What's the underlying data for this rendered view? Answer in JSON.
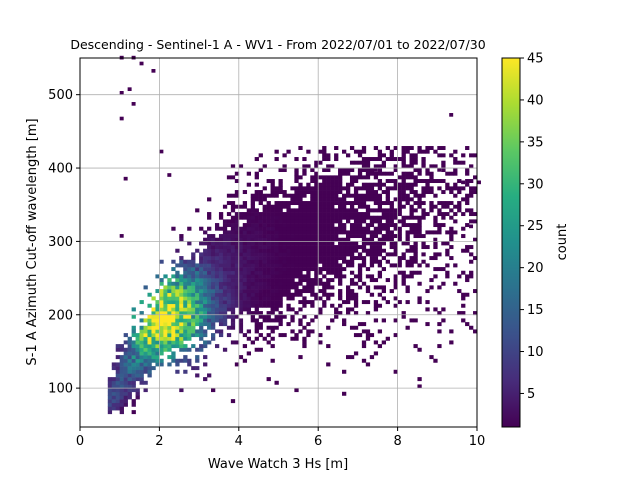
{
  "chart_data": {
    "type": "heatmap",
    "title": "Descending - Sentinel-1 A - WV1 - From 2022/07/01 to 2022/07/30",
    "xlabel": "Wave Watch 3 Hs [m]",
    "ylabel": "S-1 A Azimuth Cut-off wavelength [m]",
    "xlim": [
      0,
      10
    ],
    "ylim": [
      47,
      550
    ],
    "xticks": [
      0,
      2,
      4,
      6,
      8,
      10
    ],
    "yticks": [
      100,
      200,
      300,
      400,
      500
    ],
    "grid": true,
    "colorbar": {
      "label": "count",
      "colormap": "viridis",
      "range": [
        1,
        45
      ],
      "ticks": [
        5,
        10,
        15,
        20,
        25,
        30,
        35,
        40,
        45
      ]
    },
    "density_model": {
      "note": "binned counts of Hs vs azimuth cut-off",
      "ridge": [
        {
          "hs": 1.0,
          "cutoff": 105
        },
        {
          "hs": 2.0,
          "cutoff": 185
        },
        {
          "hs": 3.0,
          "cutoff": 230
        },
        {
          "hs": 4.0,
          "cutoff": 262
        },
        {
          "hs": 5.0,
          "cutoff": 285
        },
        {
          "hs": 6.0,
          "cutoff": 305
        },
        {
          "hs": 7.0,
          "cutoff": 325
        },
        {
          "hs": 8.0,
          "cutoff": 345
        },
        {
          "hs": 9.0,
          "cutoff": 360
        }
      ],
      "peak": {
        "hs": 2.1,
        "cutoff": 195,
        "count": 45
      }
    },
    "outliers": [
      [
        1.0,
        548
      ],
      [
        1.3,
        548
      ],
      [
        1.5,
        540
      ],
      [
        1.8,
        530
      ],
      [
        1.0,
        500
      ],
      [
        1.2,
        505
      ],
      [
        1.3,
        485
      ],
      [
        1.0,
        465
      ],
      [
        1.1,
        383
      ],
      [
        2.0,
        420
      ],
      [
        2.2,
        388
      ],
      [
        1.0,
        305
      ],
      [
        9.3,
        470
      ],
      [
        8.1,
        405
      ],
      [
        7.4,
        395
      ],
      [
        8.0,
        375
      ],
      [
        9.6,
        378
      ],
      [
        10.0,
        378
      ],
      [
        9.8,
        318
      ],
      [
        8.9,
        300
      ],
      [
        9.0,
        395
      ]
    ]
  }
}
